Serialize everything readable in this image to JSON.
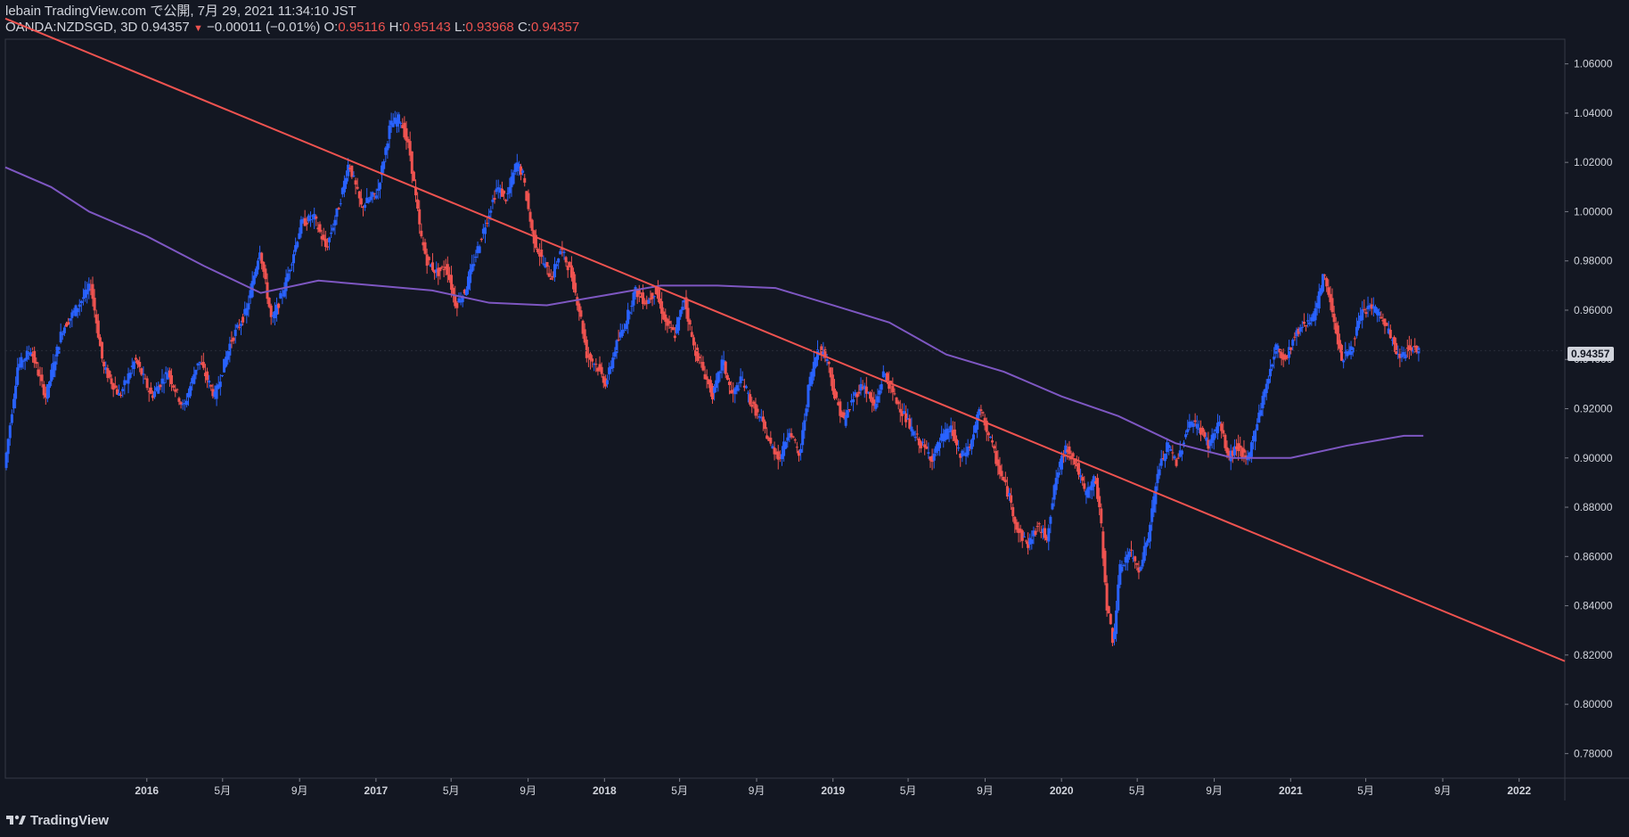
{
  "header": {
    "publish_line": "lebain TradingView.com で公開, 7月 29, 2021 11:34:10 JST",
    "symbol": "OANDA:NZDSGD, 3D",
    "last": "0.94357",
    "change": "−0.00011 (−0.01%)",
    "o_label": "O:",
    "o_value": "0.95116",
    "h_label": "H:",
    "h_value": "0.95143",
    "l_label": "L:",
    "l_value": "0.93968",
    "c_label": "C:",
    "c_value": "0.94357"
  },
  "footer": {
    "brand": "TradingView"
  },
  "colors": {
    "background": "#131722",
    "up": "#2962ff",
    "down": "#ef5350",
    "ma": "#7e57c2",
    "trendline": "#f05350",
    "axis_text": "#d1d4dc"
  },
  "chart_data": {
    "type": "candlestick",
    "title": "OANDA:NZDSGD, 3D",
    "ylim": [
      0.77,
      1.07
    ],
    "xlim": [
      "2015-05-20",
      "2022-03-15"
    ],
    "y_ticks": [
      "1.06000",
      "1.04000",
      "1.02000",
      "1.00000",
      "0.98000",
      "0.96000",
      "0.94000",
      "0.92000",
      "0.90000",
      "0.88000",
      "0.86000",
      "0.84000",
      "0.82000",
      "0.80000",
      "0.78000"
    ],
    "current_price_label": "0.94357",
    "x_ticks": [
      {
        "date": "2016-01-01",
        "label": "2016"
      },
      {
        "date": "2016-05-01",
        "label": "5月"
      },
      {
        "date": "2016-09-01",
        "label": "9月"
      },
      {
        "date": "2017-01-01",
        "label": "2017"
      },
      {
        "date": "2017-05-01",
        "label": "5月"
      },
      {
        "date": "2017-09-01",
        "label": "9月"
      },
      {
        "date": "2018-01-01",
        "label": "2018"
      },
      {
        "date": "2018-05-01",
        "label": "5月"
      },
      {
        "date": "2018-09-01",
        "label": "9月"
      },
      {
        "date": "2019-01-01",
        "label": "2019"
      },
      {
        "date": "2019-05-01",
        "label": "5月"
      },
      {
        "date": "2019-09-01",
        "label": "9月"
      },
      {
        "date": "2020-01-01",
        "label": "2020"
      },
      {
        "date": "2020-05-01",
        "label": "5月"
      },
      {
        "date": "2020-09-01",
        "label": "9月"
      },
      {
        "date": "2021-01-01",
        "label": "2021"
      },
      {
        "date": "2021-05-01",
        "label": "5月"
      },
      {
        "date": "2021-09-01",
        "label": "9月"
      },
      {
        "date": "2022-01-01",
        "label": "2022"
      }
    ],
    "price_path": [
      [
        "2015-05-20",
        0.896
      ],
      [
        "2015-06-10",
        0.937
      ],
      [
        "2015-07-01",
        0.944
      ],
      [
        "2015-07-25",
        0.925
      ],
      [
        "2015-08-20",
        0.952
      ],
      [
        "2015-09-15",
        0.962
      ],
      [
        "2015-10-05",
        0.97
      ],
      [
        "2015-10-25",
        0.937
      ],
      [
        "2015-11-20",
        0.925
      ],
      [
        "2015-12-15",
        0.94
      ],
      [
        "2016-01-10",
        0.925
      ],
      [
        "2016-02-05",
        0.935
      ],
      [
        "2016-03-01",
        0.92
      ],
      [
        "2016-03-25",
        0.94
      ],
      [
        "2016-04-20",
        0.925
      ],
      [
        "2016-05-15",
        0.947
      ],
      [
        "2016-06-10",
        0.96
      ],
      [
        "2016-07-01",
        0.985
      ],
      [
        "2016-07-20",
        0.955
      ],
      [
        "2016-08-10",
        0.97
      ],
      [
        "2016-09-05",
        0.995
      ],
      [
        "2016-09-25",
        0.998
      ],
      [
        "2016-10-15",
        0.985
      ],
      [
        "2016-11-05",
        1.003
      ],
      [
        "2016-11-20",
        1.02
      ],
      [
        "2016-12-10",
        1.002
      ],
      [
        "2017-01-05",
        1.008
      ],
      [
        "2017-01-25",
        1.035
      ],
      [
        "2017-02-10",
        1.038
      ],
      [
        "2017-02-25",
        1.025
      ],
      [
        "2017-03-15",
        0.99
      ],
      [
        "2017-03-25",
        0.98
      ],
      [
        "2017-04-10",
        0.975
      ],
      [
        "2017-04-25",
        0.978
      ],
      [
        "2017-05-10",
        0.962
      ],
      [
        "2017-05-25",
        0.968
      ],
      [
        "2017-06-20",
        0.99
      ],
      [
        "2017-07-15",
        1.01
      ],
      [
        "2017-07-30",
        1.005
      ],
      [
        "2017-08-15",
        1.02
      ],
      [
        "2017-08-25",
        1.015
      ],
      [
        "2017-09-10",
        0.99
      ],
      [
        "2017-09-25",
        0.98
      ],
      [
        "2017-10-10",
        0.973
      ],
      [
        "2017-10-25",
        0.985
      ],
      [
        "2017-11-10",
        0.975
      ],
      [
        "2017-11-25",
        0.958
      ],
      [
        "2017-12-05",
        0.942
      ],
      [
        "2017-12-20",
        0.938
      ],
      [
        "2018-01-05",
        0.93
      ],
      [
        "2018-01-20",
        0.945
      ],
      [
        "2018-02-05",
        0.955
      ],
      [
        "2018-02-20",
        0.968
      ],
      [
        "2018-03-10",
        0.963
      ],
      [
        "2018-03-25",
        0.968
      ],
      [
        "2018-04-10",
        0.955
      ],
      [
        "2018-04-25",
        0.95
      ],
      [
        "2018-05-10",
        0.965
      ],
      [
        "2018-05-25",
        0.945
      ],
      [
        "2018-06-10",
        0.935
      ],
      [
        "2018-06-25",
        0.925
      ],
      [
        "2018-07-10",
        0.94
      ],
      [
        "2018-07-25",
        0.925
      ],
      [
        "2018-08-10",
        0.932
      ],
      [
        "2018-08-25",
        0.922
      ],
      [
        "2018-09-10",
        0.915
      ],
      [
        "2018-09-25",
        0.905
      ],
      [
        "2018-10-10",
        0.9
      ],
      [
        "2018-10-25",
        0.912
      ],
      [
        "2018-11-10",
        0.9
      ],
      [
        "2018-11-25",
        0.93
      ],
      [
        "2018-12-10",
        0.945
      ],
      [
        "2018-12-25",
        0.94
      ],
      [
        "2019-01-05",
        0.925
      ],
      [
        "2019-01-20",
        0.915
      ],
      [
        "2019-02-05",
        0.925
      ],
      [
        "2019-02-20",
        0.93
      ],
      [
        "2019-03-10",
        0.92
      ],
      [
        "2019-03-25",
        0.935
      ],
      [
        "2019-04-10",
        0.925
      ],
      [
        "2019-04-25",
        0.918
      ],
      [
        "2019-05-10",
        0.91
      ],
      [
        "2019-05-25",
        0.905
      ],
      [
        "2019-06-10",
        0.9
      ],
      [
        "2019-06-25",
        0.908
      ],
      [
        "2019-07-10",
        0.912
      ],
      [
        "2019-07-25",
        0.9
      ],
      [
        "2019-08-10",
        0.905
      ],
      [
        "2019-08-25",
        0.92
      ],
      [
        "2019-09-10",
        0.908
      ],
      [
        "2019-09-25",
        0.895
      ],
      [
        "2019-10-10",
        0.885
      ],
      [
        "2019-10-25",
        0.87
      ],
      [
        "2019-11-10",
        0.865
      ],
      [
        "2019-11-25",
        0.872
      ],
      [
        "2019-12-10",
        0.868
      ],
      [
        "2019-12-25",
        0.892
      ],
      [
        "2020-01-10",
        0.905
      ],
      [
        "2020-01-25",
        0.898
      ],
      [
        "2020-02-10",
        0.885
      ],
      [
        "2020-02-25",
        0.892
      ],
      [
        "2020-03-05",
        0.875
      ],
      [
        "2020-03-15",
        0.84
      ],
      [
        "2020-03-25",
        0.825
      ],
      [
        "2020-04-05",
        0.855
      ],
      [
        "2020-04-20",
        0.862
      ],
      [
        "2020-05-05",
        0.855
      ],
      [
        "2020-05-20",
        0.868
      ],
      [
        "2020-06-05",
        0.895
      ],
      [
        "2020-06-20",
        0.905
      ],
      [
        "2020-07-05",
        0.898
      ],
      [
        "2020-07-25",
        0.915
      ],
      [
        "2020-08-10",
        0.912
      ],
      [
        "2020-08-25",
        0.905
      ],
      [
        "2020-09-10",
        0.915
      ],
      [
        "2020-09-25",
        0.9
      ],
      [
        "2020-10-10",
        0.905
      ],
      [
        "2020-10-25",
        0.898
      ],
      [
        "2020-11-10",
        0.915
      ],
      [
        "2020-11-25",
        0.93
      ],
      [
        "2020-12-10",
        0.945
      ],
      [
        "2020-12-25",
        0.94
      ],
      [
        "2021-01-10",
        0.95
      ],
      [
        "2021-01-25",
        0.955
      ],
      [
        "2021-02-10",
        0.958
      ],
      [
        "2021-02-25",
        0.975
      ],
      [
        "2021-03-10",
        0.96
      ],
      [
        "2021-03-25",
        0.94
      ],
      [
        "2021-04-10",
        0.945
      ],
      [
        "2021-04-25",
        0.958
      ],
      [
        "2021-05-10",
        0.962
      ],
      [
        "2021-05-25",
        0.958
      ],
      [
        "2021-06-10",
        0.95
      ],
      [
        "2021-06-25",
        0.94
      ],
      [
        "2021-07-10",
        0.945
      ],
      [
        "2021-07-25",
        0.9436
      ]
    ],
    "moving_average": [
      [
        "2015-05-20",
        1.018
      ],
      [
        "2015-08-01",
        1.01
      ],
      [
        "2015-10-01",
        1.0
      ],
      [
        "2016-01-01",
        0.99
      ],
      [
        "2016-04-01",
        0.978
      ],
      [
        "2016-07-01",
        0.967
      ],
      [
        "2016-10-01",
        0.972
      ],
      [
        "2017-01-01",
        0.97
      ],
      [
        "2017-04-01",
        0.968
      ],
      [
        "2017-07-01",
        0.963
      ],
      [
        "2017-10-01",
        0.962
      ],
      [
        "2018-01-01",
        0.966
      ],
      [
        "2018-04-01",
        0.97
      ],
      [
        "2018-07-01",
        0.97
      ],
      [
        "2018-10-01",
        0.969
      ],
      [
        "2019-01-01",
        0.962
      ],
      [
        "2019-04-01",
        0.955
      ],
      [
        "2019-07-01",
        0.942
      ],
      [
        "2019-10-01",
        0.935
      ],
      [
        "2020-01-01",
        0.925
      ],
      [
        "2020-04-01",
        0.917
      ],
      [
        "2020-07-01",
        0.906
      ],
      [
        "2020-10-01",
        0.9
      ],
      [
        "2021-01-01",
        0.9
      ],
      [
        "2021-04-01",
        0.905
      ],
      [
        "2021-07-01",
        0.909
      ],
      [
        "2021-08-01",
        0.909
      ]
    ],
    "trendline": {
      "start": [
        "2015-05-20",
        1.0784
      ],
      "end": [
        "2022-03-15",
        0.8175
      ]
    }
  }
}
